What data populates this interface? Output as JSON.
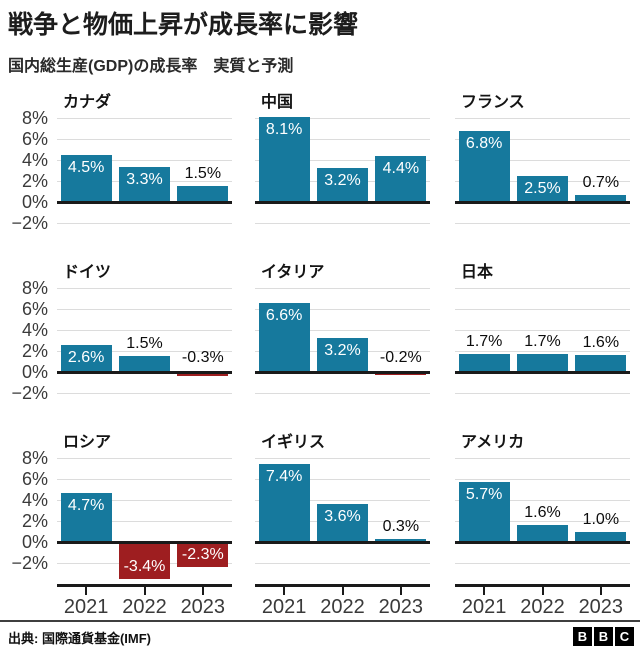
{
  "header": {
    "title": "戦争と物価上昇が成長率に影響",
    "subtitle": "国内総生産(GDP)の成長率　実質と予測"
  },
  "footer": {
    "source": "出典: 国際通貨基金(IMF)",
    "logo_letters": [
      "B",
      "B",
      "C"
    ]
  },
  "chart_data": {
    "type": "bar",
    "title": "戦争と物価上昇が成長率に影響",
    "subtitle": "国内総生産(GDP)の成長率　実質と予測",
    "layout": "3x3 small multiples, x axis labels on bottom row only, y axis labels on left column only",
    "categories": [
      "2021",
      "2022",
      "2023"
    ],
    "y_ticks": [
      {
        "value": 8,
        "label": "8%"
      },
      {
        "value": 6,
        "label": "6%"
      },
      {
        "value": 4,
        "label": "4%"
      },
      {
        "value": 2,
        "label": "2%"
      },
      {
        "value": 0,
        "label": "0%"
      },
      {
        "value": -2,
        "label": "−2%"
      }
    ],
    "ylim": [
      -4,
      8.5
    ],
    "grid": true,
    "unit": "%",
    "panels": [
      {
        "name": "カナダ",
        "values": [
          4.5,
          3.3,
          1.5
        ],
        "labels": [
          "4.5%",
          "3.3%",
          "1.5%"
        ]
      },
      {
        "name": "中国",
        "values": [
          8.1,
          3.2,
          4.4
        ],
        "labels": [
          "8.1%",
          "3.2%",
          "4.4%"
        ]
      },
      {
        "name": "フランス",
        "values": [
          6.8,
          2.5,
          0.7
        ],
        "labels": [
          "6.8%",
          "2.5%",
          "0.7%"
        ]
      },
      {
        "name": "ドイツ",
        "values": [
          2.6,
          1.5,
          -0.3
        ],
        "labels": [
          "2.6%",
          "1.5%",
          "-0.3%"
        ]
      },
      {
        "name": "イタリア",
        "values": [
          6.6,
          3.2,
          -0.2
        ],
        "labels": [
          "6.6%",
          "3.2%",
          "-0.2%"
        ]
      },
      {
        "name": "日本",
        "values": [
          1.7,
          1.7,
          1.6
        ],
        "labels": [
          "1.7%",
          "1.7%",
          "1.6%"
        ]
      },
      {
        "name": "ロシア",
        "values": [
          4.7,
          -3.4,
          -2.3
        ],
        "labels": [
          "4.7%",
          "-3.4%",
          "-2.3%"
        ]
      },
      {
        "name": "イギリス",
        "values": [
          7.4,
          3.6,
          0.3
        ],
        "labels": [
          "7.4%",
          "3.6%",
          "0.3%"
        ]
      },
      {
        "name": "アメリカ",
        "values": [
          5.7,
          1.6,
          1.0
        ],
        "labels": [
          "5.7%",
          "1.6%",
          "1.0%"
        ]
      }
    ],
    "colors": {
      "positive": "#16799d",
      "negative": "#9e1e20"
    }
  }
}
